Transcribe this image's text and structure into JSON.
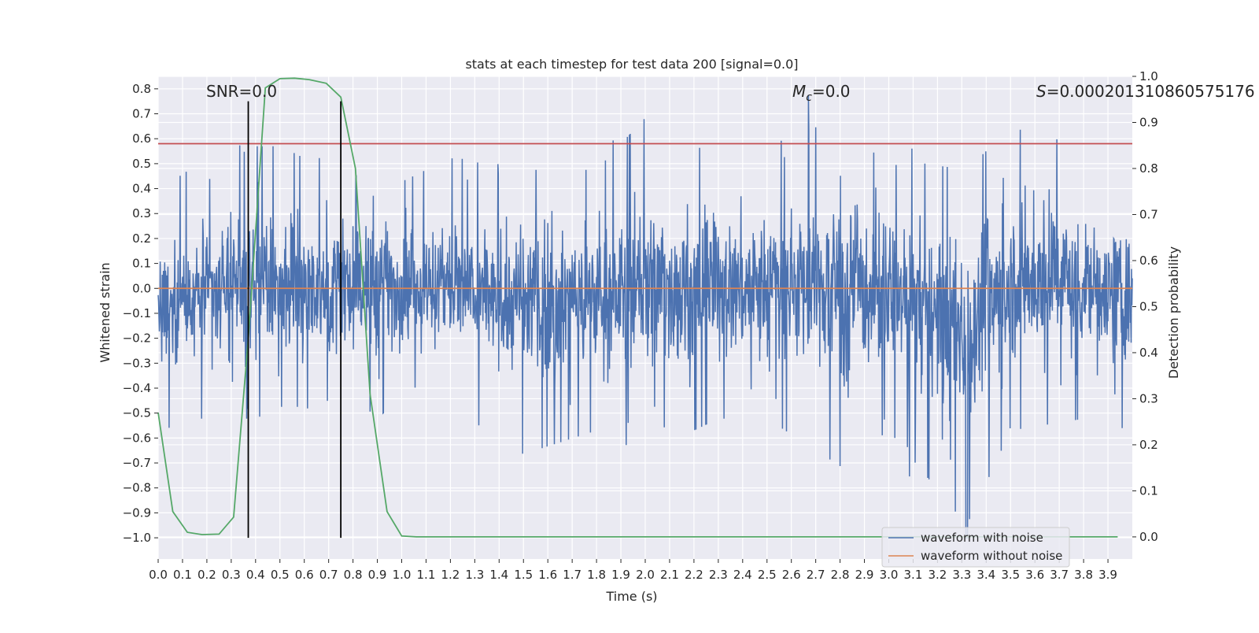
{
  "chart_data": {
    "type": "line",
    "title": "stats at each timestep for test data 200 [signal=0.0]",
    "xlabel": "Time (s)",
    "ylabel": "Whitened strain",
    "y2label": "Detection probability",
    "xlim": [
      0.0,
      4.0
    ],
    "ylim": [
      -1.085,
      0.85
    ],
    "y2lim": [
      -0.048,
      1.0
    ],
    "x_ticks": [
      0.0,
      0.1,
      0.2,
      0.3,
      0.4,
      0.5,
      0.6,
      0.7,
      0.8,
      0.9,
      1.0,
      1.1,
      1.2,
      1.3,
      1.4,
      1.5,
      1.6,
      1.7,
      1.8,
      1.9,
      2.0,
      2.1,
      2.2,
      2.3,
      2.4,
      2.5,
      2.6,
      2.7,
      2.8,
      2.9,
      3.0,
      3.1,
      3.2,
      3.3,
      3.4,
      3.5,
      3.6,
      3.7,
      3.8,
      3.9
    ],
    "x_tick_labels": [
      "0.0",
      "0.1",
      "0.2",
      "0.3",
      "0.4",
      "0.5",
      "0.6",
      "0.7",
      "0.8",
      "0.9",
      "1.0",
      "1.1",
      "1.2",
      "1.3",
      "1.4",
      "1.5",
      "1.6",
      "1.7",
      "1.8",
      "1.9",
      "2.0",
      "2.1",
      "2.2",
      "2.3",
      "2.4",
      "2.5",
      "2.6",
      "2.7",
      "2.8",
      "2.9",
      "3.0",
      "3.1",
      "3.2",
      "3.3",
      "3.4",
      "3.5",
      "3.6",
      "3.7",
      "3.8",
      "3.9"
    ],
    "y_ticks": [
      0.8,
      0.7,
      0.6,
      0.5,
      0.4,
      0.3,
      0.2,
      0.1,
      0.0,
      -0.1,
      -0.2,
      -0.3,
      -0.4,
      -0.5,
      -0.6,
      -0.7,
      -0.8,
      -0.9,
      -1.0
    ],
    "y_tick_labels": [
      "0.8",
      "0.7",
      "0.6",
      "0.5",
      "0.4",
      "0.3",
      "0.2",
      "0.1",
      "0.0",
      "−0.1",
      "−0.2",
      "−0.3",
      "−0.4",
      "−0.5",
      "−0.6",
      "−0.7",
      "−0.8",
      "−0.9",
      "−1.0"
    ],
    "y2_ticks": [
      1.0,
      0.9,
      0.8,
      0.7,
      0.6,
      0.5,
      0.4,
      0.3,
      0.2,
      0.1,
      0.0
    ],
    "y2_tick_labels": [
      "1.0",
      "0.9",
      "0.8",
      "0.7",
      "0.6",
      "0.5",
      "0.4",
      "0.3",
      "0.2",
      "0.1",
      "0.0"
    ],
    "grid": true,
    "legend_position": "bottom-right",
    "annotations": {
      "snr": "SNR=0.0",
      "mc_symbol": "M",
      "mc_sub": "c",
      "mc_value": "=0.0",
      "s_symbol": "S",
      "s_value": "=0.00020131086057517​6"
    },
    "series": [
      {
        "name": "waveform with noise",
        "axis": "left",
        "color": "#4c72b0",
        "style": "dense noise, approximately in [-0.65, 0.75] with spikes",
        "envelope_points": [
          [
            0.0,
            0.25,
            -0.62
          ],
          [
            0.1,
            0.5,
            -0.55
          ],
          [
            0.2,
            0.45,
            -0.55
          ],
          [
            0.3,
            0.55,
            -0.55
          ],
          [
            0.4,
            0.6,
            -0.55
          ],
          [
            0.5,
            0.6,
            -0.5
          ],
          [
            0.6,
            0.55,
            -0.5
          ],
          [
            0.7,
            0.55,
            -0.55
          ],
          [
            0.8,
            0.45,
            -0.45
          ],
          [
            0.9,
            0.6,
            -0.55
          ],
          [
            1.0,
            0.45,
            -0.45
          ],
          [
            1.2,
            0.55,
            -0.5
          ],
          [
            1.5,
            0.5,
            -0.7
          ],
          [
            1.8,
            0.5,
            -0.6
          ],
          [
            2.0,
            0.72,
            -0.7
          ],
          [
            2.3,
            0.55,
            -0.55
          ],
          [
            2.5,
            0.6,
            -0.55
          ],
          [
            2.8,
            0.72,
            -0.75
          ],
          [
            3.0,
            0.55,
            -0.6
          ],
          [
            3.32,
            0.5,
            -1.0
          ],
          [
            3.5,
            0.68,
            -0.6
          ],
          [
            3.8,
            0.6,
            -0.55
          ],
          [
            4.0,
            0.45,
            -0.6
          ]
        ]
      },
      {
        "name": "waveform without noise",
        "axis": "left",
        "color": "#dd8452",
        "x": [
          0.0,
          4.0
        ],
        "y": [
          0.0,
          0.0
        ]
      },
      {
        "name": "",
        "axis": "right",
        "color": "#55a868",
        "x": [
          0.0,
          0.06,
          0.12,
          0.18,
          0.25,
          0.31,
          0.37,
          0.44,
          0.5,
          0.56,
          0.62,
          0.69,
          0.75,
          0.81,
          0.87,
          0.94,
          1.0,
          1.06,
          1.12,
          3.94
        ],
        "y": [
          0.27,
          0.055,
          0.01,
          0.005,
          0.006,
          0.043,
          0.43,
          0.975,
          0.995,
          0.996,
          0.993,
          0.985,
          0.955,
          0.8,
          0.31,
          0.055,
          0.002,
          0.0,
          0.0,
          0.0
        ]
      }
    ],
    "threshold_line": {
      "axis": "left",
      "y": 0.58,
      "color": "#c44e52"
    },
    "vertical_markers": {
      "color": "#000000",
      "x": [
        0.37,
        0.75
      ],
      "y_range": [
        -1.0,
        0.75
      ]
    }
  }
}
